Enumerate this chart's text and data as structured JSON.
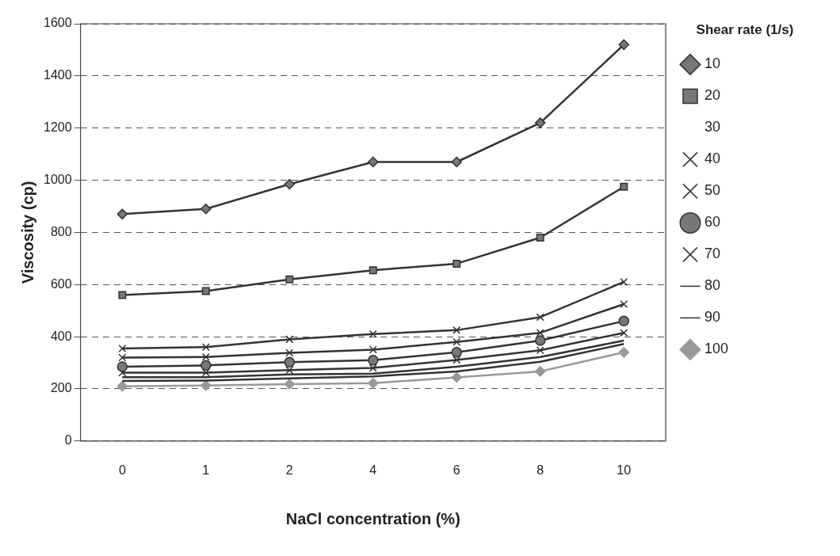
{
  "chart_data": {
    "type": "line",
    "xlabel": "NaCl concentration (%)",
    "ylabel": "Viscosity (cp)",
    "legend_title": "Shear rate (1/s)",
    "categories": [
      "0",
      "1",
      "2",
      "4",
      "6",
      "8",
      "10"
    ],
    "ylim": [
      0,
      1600
    ],
    "yticks": [
      0,
      200,
      400,
      600,
      800,
      1000,
      1200,
      1400,
      1600
    ],
    "grid": "y",
    "legend": "right",
    "line_style": "solid",
    "series": [
      {
        "name": "10",
        "color": "#333333",
        "marker": "diamond",
        "values": [
          870,
          890,
          985,
          1070,
          1070,
          1220,
          1520
        ]
      },
      {
        "name": "20",
        "color": "#333333",
        "marker": "square",
        "values": [
          560,
          575,
          620,
          655,
          680,
          780,
          975
        ]
      },
      {
        "name": "30",
        "marker": "none",
        "values": [
          null,
          null,
          null,
          null,
          null,
          null,
          null
        ]
      },
      {
        "name": "40",
        "color": "#333333",
        "marker": "cross",
        "values": [
          355,
          360,
          390,
          410,
          425,
          475,
          610
        ]
      },
      {
        "name": "50",
        "color": "#333333",
        "marker": "cross",
        "values": [
          320,
          322,
          338,
          350,
          380,
          415,
          525
        ]
      },
      {
        "name": "60",
        "color": "#333333",
        "marker": "circle",
        "values": [
          285,
          290,
          302,
          310,
          340,
          385,
          460
        ]
      },
      {
        "name": "70",
        "color": "#333333",
        "marker": "cross",
        "values": [
          262,
          262,
          272,
          280,
          311,
          348,
          415
        ]
      },
      {
        "name": "80",
        "color": "#333333",
        "marker": "none",
        "values": [
          245,
          245,
          255,
          258,
          285,
          322,
          385
        ]
      },
      {
        "name": "90",
        "color": "#333333",
        "marker": "none",
        "values": [
          230,
          232,
          240,
          248,
          267,
          304,
          372
        ]
      },
      {
        "name": "100",
        "color": "#999999",
        "marker": "diamond",
        "values": [
          210,
          213,
          218,
          222,
          244,
          267,
          340
        ]
      }
    ]
  }
}
